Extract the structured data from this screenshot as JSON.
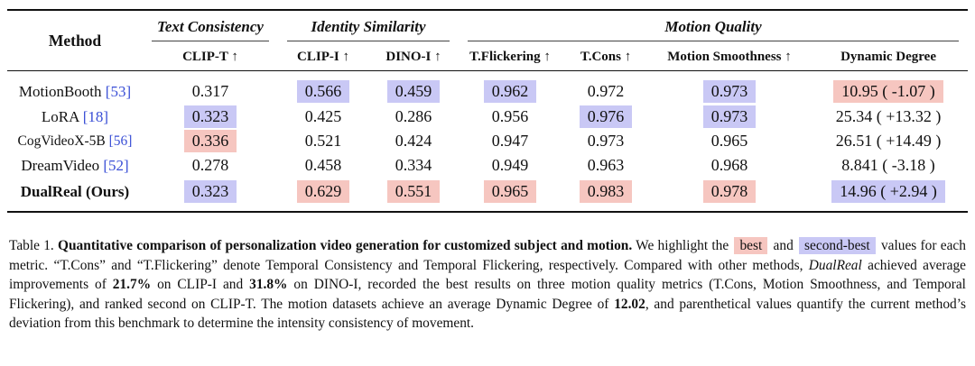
{
  "table": {
    "header": {
      "method": "Method",
      "groups": {
        "text_consistency": "Text Consistency",
        "identity_similarity": "Identity Similarity",
        "motion_quality": "Motion Quality"
      },
      "columns": {
        "clip_t": "CLIP-T ↑",
        "clip_i": "CLIP-I ↑",
        "dino_i": "DINO-I ↑",
        "t_flickering": "T.Flickering ↑",
        "t_cons": "T.Cons ↑",
        "motion_smoothness": "Motion Smoothness ↑",
        "dynamic_degree": "Dynamic Degree"
      }
    },
    "rows": [
      {
        "name": "MotionBooth",
        "ref": "53",
        "clip_t": "0.317",
        "clip_i": "0.566",
        "dino_i": "0.459",
        "t_flickering": "0.962",
        "t_cons": "0.972",
        "motion_smoothness": "0.973",
        "dynamic_degree": "10.95 ( -1.07 )"
      },
      {
        "name": "LoRA",
        "ref": "18",
        "clip_t": "0.323",
        "clip_i": "0.425",
        "dino_i": "0.286",
        "t_flickering": "0.956",
        "t_cons": "0.976",
        "motion_smoothness": "0.973",
        "dynamic_degree": "25.34 ( +13.32 )"
      },
      {
        "name": "CogVideoX-5B",
        "ref": "56",
        "clip_t": "0.336",
        "clip_i": "0.521",
        "dino_i": "0.424",
        "t_flickering": "0.947",
        "t_cons": "0.973",
        "motion_smoothness": "0.965",
        "dynamic_degree": "26.51 ( +14.49 )"
      },
      {
        "name": "DreamVideo",
        "ref": "52",
        "clip_t": "0.278",
        "clip_i": "0.458",
        "dino_i": "0.334",
        "t_flickering": "0.949",
        "t_cons": "0.963",
        "motion_smoothness": "0.968",
        "dynamic_degree": "8.841 ( -3.18 )"
      },
      {
        "name": "DualReal (Ours)",
        "clip_t": "0.323",
        "clip_i": "0.629",
        "dino_i": "0.551",
        "t_flickering": "0.965",
        "t_cons": "0.983",
        "motion_smoothness": "0.978",
        "dynamic_degree": "14.96 ( +2.94 )"
      }
    ],
    "highlight_colors": {
      "best": "#f6c6c0",
      "second_best": "#c9c8f5"
    },
    "bracket_open": "[",
    "bracket_close": "]"
  },
  "caption": {
    "label": "Table 1.",
    "title": "Quantitative comparison of personalization video generation for customized subject and motion.",
    "s1": "We highlight the",
    "best_chip": "best",
    "and": "and",
    "second_chip": "second-best",
    "s2": "values for each metric. “T.Cons” and “T.Flickering” denote Temporal Consistency and Temporal Flickering, respectively. Compared with other methods,",
    "method_italic": "DualReal",
    "s3": "achieved average improvements of",
    "v_clip_i": "21.7%",
    "s4": "on CLIP-I and",
    "v_dino_i": "31.8%",
    "s5": "on DINO-I, recorded the best results on three motion quality metrics (T.Cons, Motion Smoothness, and Temporal Flickering), and ranked second on CLIP-T. The motion datasets achieve an average Dynamic Degree of",
    "v_dd": "12.02",
    "s6": ", and parenthetical values quantify the current method’s deviation from this benchmark to determine the intensity consistency of movement."
  }
}
